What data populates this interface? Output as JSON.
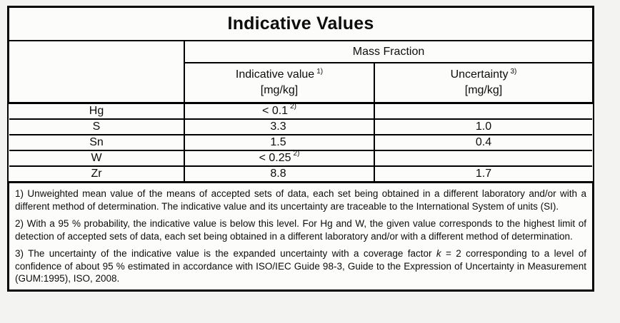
{
  "table": {
    "title": "Indicative Values",
    "group_header": "Mass Fraction",
    "columns": {
      "value_label": "Indicative value",
      "value_sup": "1)",
      "value_unit": "[mg/kg]",
      "uncertainty_label": "Uncertainty",
      "uncertainty_sup": "3)",
      "uncertainty_unit": "[mg/kg]"
    },
    "rows": [
      {
        "element": "Hg",
        "value": "< 0.1",
        "value_sup": "2)",
        "uncertainty": ""
      },
      {
        "element": "S",
        "value": "3.3",
        "value_sup": "",
        "uncertainty": "1.0"
      },
      {
        "element": "Sn",
        "value": "1.5",
        "value_sup": "",
        "uncertainty": "0.4"
      },
      {
        "element": "W",
        "value": "< 0.25",
        "value_sup": "2)",
        "uncertainty": ""
      },
      {
        "element": "Zr",
        "value": "8.8",
        "value_sup": "",
        "uncertainty": "1.7"
      }
    ]
  },
  "footnotes": [
    {
      "text": "1) Unweighted mean value of the means of accepted sets of data, each set being obtained in a different laboratory and/or with a different method of determination. The indicative value and its uncertainty are traceable to the International System of units (SI)."
    },
    {
      "text": "2) With a 95 % probability, the indicative value is below this level. For Hg and W, the given value corresponds to the highest limit of detection of accepted sets of data, each set being obtained in a different laboratory and/or with a different method of determination."
    },
    {
      "pre": "3) The uncertainty of the indicative value is the expanded uncertainty with a coverage factor ",
      "italic": "k",
      "post": " = 2 corresponding to a level of confidence of about 95 % estimated in accordance with ISO/IEC Guide 98-3, Guide to the Expression of Uncertainty in Measurement (GUM:1995), ISO, 2008."
    }
  ],
  "colors": {
    "page_bg": "#f3f3f1",
    "table_bg": "#fcfcfb",
    "border": "#000000",
    "text": "#0d0d0d"
  }
}
